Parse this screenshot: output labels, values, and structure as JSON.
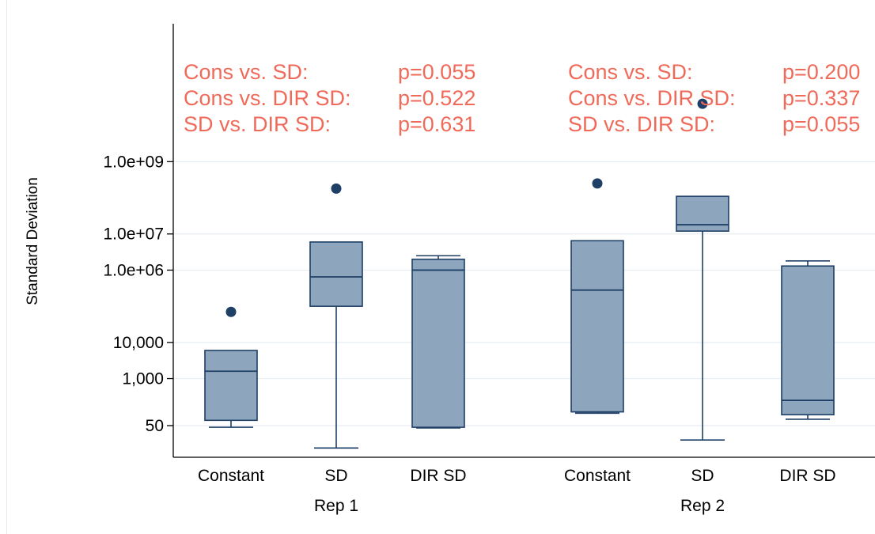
{
  "chart_data": {
    "type": "box",
    "ylabel": "Standard Deviation",
    "yscale": "log",
    "yticks": [
      {
        "value": 50,
        "label": "50"
      },
      {
        "value": 1000,
        "label": "1,000"
      },
      {
        "value": 10000,
        "label": "10,000"
      },
      {
        "value": 1000000,
        "label": "1.0e+06"
      },
      {
        "value": 10000000,
        "label": "1.0e+07"
      },
      {
        "value": 1000000000,
        "label": "1.0e+09"
      }
    ],
    "grid": true,
    "colors": {
      "box": "#8ea6bd",
      "edge": "#1e3f66",
      "annotation": "#f06a5a",
      "grid": "#e6edf3"
    },
    "groups": [
      {
        "label": "Rep 1",
        "boxes": [
          {
            "label": "Constant",
            "whisker_low": 45,
            "q1": 70,
            "median": 1600,
            "q3": 6000,
            "whisker_high": 6000,
            "outliers": [
              70000
            ]
          },
          {
            "label": "SD",
            "whisker_low": 12,
            "q1": 100000,
            "median": 650000,
            "q3": 6000000,
            "whisker_high": 6000000,
            "outliers": [
              180000000
            ]
          },
          {
            "label": "DIR SD",
            "whisker_low": 43,
            "q1": 45,
            "median": 1000000,
            "q3": 2000000,
            "whisker_high": 2500000,
            "outliers": []
          }
        ],
        "annotations": [
          {
            "label": "Cons vs. SD:",
            "pvalue": "p=0.055"
          },
          {
            "label": "Cons vs. DIR SD:",
            "pvalue": "p=0.522"
          },
          {
            "label": "SD vs. DIR SD:",
            "pvalue": "p=0.631"
          }
        ]
      },
      {
        "label": "Rep 2",
        "boxes": [
          {
            "label": "Constant",
            "whisker_low": 110,
            "q1": 120,
            "median": 280000,
            "q3": 6500000,
            "whisker_high": 6500000,
            "outliers": [
              250000000
            ]
          },
          {
            "label": "SD",
            "whisker_low": 20,
            "q1": 12000000,
            "median": 18000000,
            "q3": 110000000,
            "whisker_high": 110000000,
            "outliers": [
              40000000000
            ]
          },
          {
            "label": "DIR SD",
            "whisker_low": 75,
            "q1": 100,
            "median": 250,
            "q3": 1300000,
            "whisker_high": 1800000,
            "outliers": []
          }
        ],
        "annotations": [
          {
            "label": "Cons vs. SD:",
            "pvalue": "p=0.200"
          },
          {
            "label": "Cons vs. DIR SD:",
            "pvalue": "p=0.337"
          },
          {
            "label": "SD vs. DIR SD:",
            "pvalue": "p=0.055"
          }
        ]
      }
    ]
  }
}
